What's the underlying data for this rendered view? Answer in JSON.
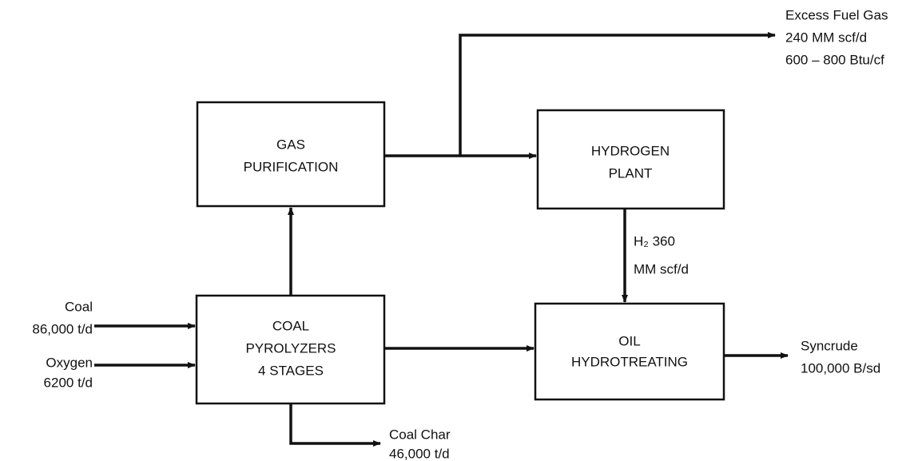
{
  "nodes": [
    {
      "lines": [
        "GAS",
        "PURIFICATION"
      ]
    },
    {
      "lines": [
        "HYDROGEN",
        "PLANT"
      ]
    },
    {
      "lines": [
        "COAL",
        "PYROLYZERS",
        "4 STAGES"
      ]
    },
    {
      "lines": [
        "OIL",
        "HYDROTREATING"
      ]
    }
  ],
  "streams": [
    {
      "lines": [
        "Coal",
        "86,000 t/d"
      ]
    },
    {
      "lines": [
        "Oxygen",
        "6200 t/d"
      ]
    },
    {
      "lines": [
        "Coal Char",
        "46,000 t/d"
      ]
    },
    {
      "lines": [
        "Excess Fuel Gas",
        "240 MM scf/d",
        "600 – 800 Btu/cf"
      ]
    },
    {
      "lines": [
        "H₂ 360",
        "MM scf/d"
      ]
    },
    {
      "lines": [
        "Syncrude",
        "100,000 B/sd"
      ]
    }
  ]
}
